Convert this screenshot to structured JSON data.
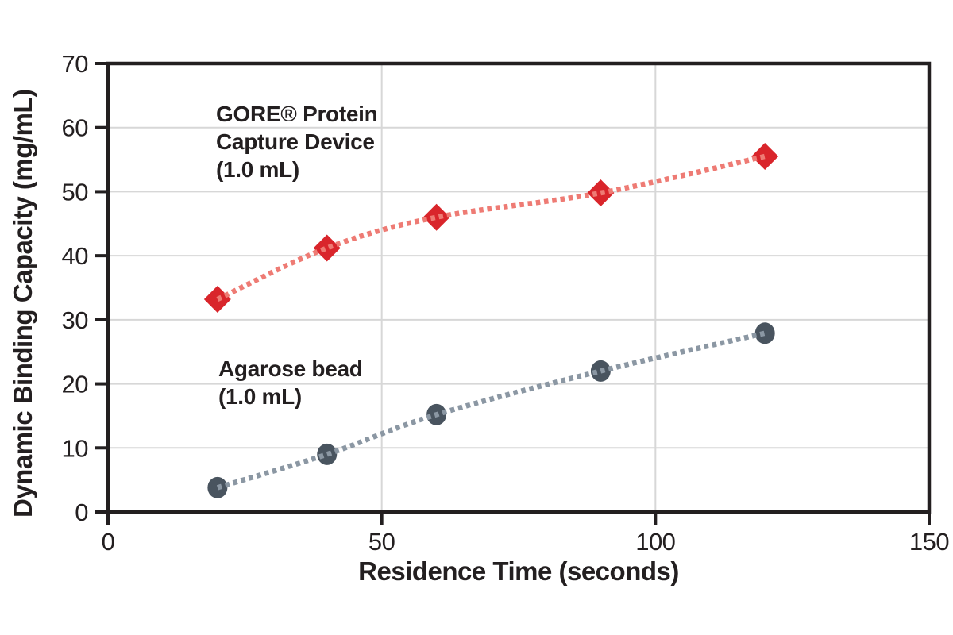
{
  "chart_data": {
    "type": "scatter",
    "title": "",
    "xlabel": "Residence Time (seconds)",
    "ylabel": "Dynamic Binding Capacity (mg/mL)",
    "xlim": [
      0,
      150
    ],
    "ylim": [
      0,
      70
    ],
    "x_ticks": [
      0,
      50,
      100,
      150
    ],
    "y_ticks": [
      0,
      10,
      20,
      30,
      40,
      50,
      60,
      70
    ],
    "grid": true,
    "legend_position": "inline-annotations",
    "series": [
      {
        "name": "GORE® Protein Capture Device (1.0 mL)",
        "label_lines": [
          "GORE® Protein",
          "Capture Device",
          "(1.0 mL)"
        ],
        "marker": "diamond",
        "marker_color": "#D9252B",
        "line_color": "#EE7B74",
        "line_style": "dotted",
        "trend": "smooth",
        "x": [
          20,
          40,
          60,
          90,
          120
        ],
        "y": [
          33.2,
          41.2,
          46.0,
          49.8,
          55.5
        ]
      },
      {
        "name": "Agarose bead (1.0 mL)",
        "label_lines": [
          "Agarose bead",
          "(1.0 mL)"
        ],
        "marker": "circle",
        "marker_color": "#49545F",
        "line_color": "#8B97A3",
        "line_style": "dotted",
        "trend": "smooth",
        "x": [
          20,
          40,
          60,
          90,
          120
        ],
        "y": [
          3.8,
          9.0,
          15.2,
          22.0,
          27.9
        ]
      }
    ],
    "colors": {
      "axis": "#231F20",
      "gridline": "#D7D7D7",
      "background": "#FFFFFF",
      "text": "#231F20"
    }
  }
}
